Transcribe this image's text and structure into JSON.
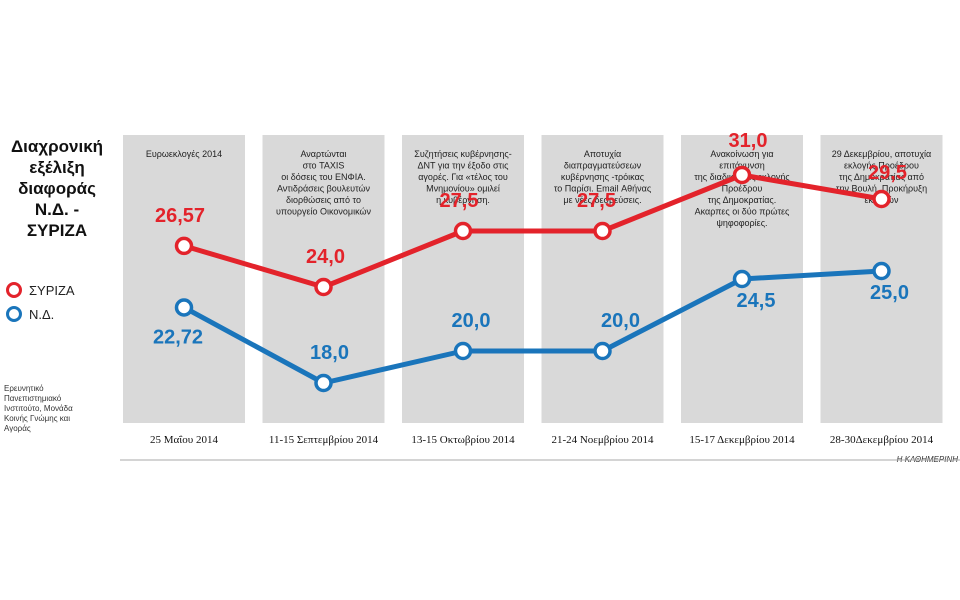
{
  "title_lines": [
    "Διαχρονική",
    "εξέλιξη",
    "διαφοράς",
    "Ν.Δ. -",
    "ΣΥΡΙΖΑ"
  ],
  "source": "Ερευνητικό Πανεπιστημιακό Ινστιτούτο, Μονάδα Κοινής Γνώμης και Αγοράς",
  "credit": "Η ΚΑΘΗΜΕΡΙΝΗ",
  "colors": {
    "syriza": "#e3232b",
    "nd": "#1a75bb",
    "panel": "#d9d9d9",
    "axis": "#aaaaaa"
  },
  "chart_data": {
    "type": "line",
    "categories": [
      "25 Μαΐου 2014",
      "11-15 Σεπτεμβρίου 2014",
      "13-15 Οκτωβρίου 2014",
      "21-24 Νοεμβρίου 2014",
      "15-17 Δεκεμβρίου 2014",
      "28-30Δεκεμβρίου 2014"
    ],
    "series": [
      {
        "name": "ΣΥΡΙΖΑ",
        "values": [
          26.57,
          24.0,
          27.5,
          27.5,
          31.0,
          29.5
        ],
        "labels": [
          "26,57",
          "24,0",
          "27,5",
          "27,5",
          "31,0",
          "29,5"
        ]
      },
      {
        "name": "Ν.Δ.",
        "values": [
          22.72,
          18.0,
          20.0,
          20.0,
          24.5,
          25.0
        ],
        "labels": [
          "22,72",
          "18,0",
          "20,0",
          "20,0",
          "24,5",
          "25,0"
        ]
      }
    ],
    "ylim": [
      15.5,
      33.5
    ],
    "annotations": [
      [
        "Ευρωεκλογές 2014"
      ],
      [
        "Αναρτώνται",
        "στο TAXIS",
        "οι δόσεις του ΕΝΦΙΑ.",
        "Αντιδράσεις βουλευτών",
        "διορθώσεις από το",
        "υπουργείο Οικονομικών"
      ],
      [
        "Συζητήσεις κυβέρνησης-",
        "ΔΝΤ για την έξοδο στις",
        "αγορές. Για «τέλος του",
        "Μνημονίου» ομιλεί",
        "η κυβέρνηση."
      ],
      [
        "Αποτυχία",
        "διαπραγματεύσεων",
        "κυβέρνησης -τρόικας",
        "το Παρίσι. Email Αθήνας",
        "με νέες δεσμεύσεις."
      ],
      [
        "Ανακοίνωση για",
        "επιτάχυνση",
        "της διαδικασίας εκλογής",
        "Προέδρου",
        "της Δημοκρατίας.",
        "Ακαρπες οι δύο πρώτες",
        "ψηφοφορίες."
      ],
      [
        "29 Δεκεμβρίου, αποτυχία",
        "εκλογής Προέδρου",
        "της Δημοκρατίας από",
        "την Βουλή. Προκήρυξη",
        "εκλογών"
      ]
    ]
  }
}
